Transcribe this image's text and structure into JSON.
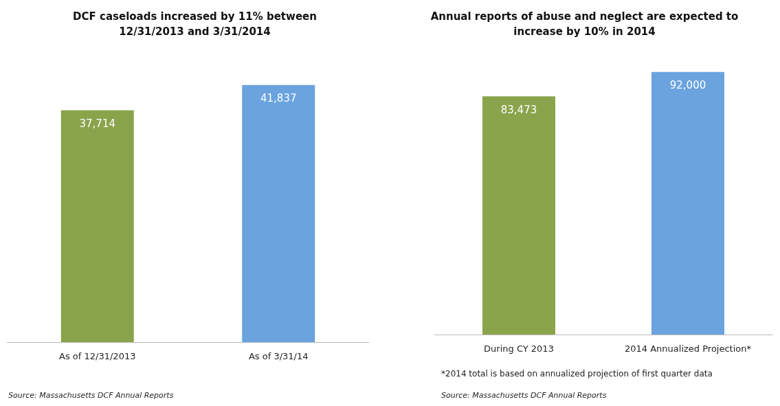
{
  "chart_data": [
    {
      "type": "bar",
      "title": "DCF caseloads increased by 11% between\n12/31/2013 and 3/31/2014",
      "categories": [
        "As of 12/31/2013",
        "As of 3/31/14"
      ],
      "values": [
        37714,
        41837
      ],
      "value_labels": [
        "37,714",
        "41,837"
      ],
      "colors": [
        "#8aa44c",
        "#6aa3de"
      ],
      "tick_labels": "x",
      "annotations": [
        "Source: Massachusetts DCF Annual Reports"
      ]
    },
    {
      "type": "bar",
      "title": "Annual reports of abuse and neglect are expected to\nincrease by 10% in 2014",
      "categories": [
        "During CY 2013",
        "2014 Annualized Projection*"
      ],
      "values": [
        83473,
        92000
      ],
      "value_labels": [
        "83,473",
        "92,000"
      ],
      "colors": [
        "#8aa44c",
        "#6aa3de"
      ],
      "tick_labels": "x",
      "annotations": [
        "*2014 total is based on annualized projection of first quarter data",
        "Source: Massachusetts DCF Annual Reports"
      ]
    }
  ]
}
